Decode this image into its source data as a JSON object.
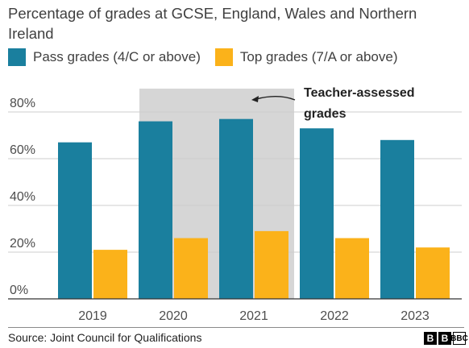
{
  "colors": {
    "pass": "#1a7f9e",
    "top": "#fbb21a",
    "shade": "#d6d6d6",
    "grid": "#cccccc",
    "axis_text": "#4d4d4d"
  },
  "chart_data": {
    "type": "bar",
    "title": "Percentage of grades at GCSE, England, Wales and Northern Ireland",
    "categories": [
      "2019",
      "2020",
      "2021",
      "2022",
      "2023"
    ],
    "series": [
      {
        "name": "Pass grades (4/C or above)",
        "values": [
          67,
          76,
          77,
          73,
          68
        ]
      },
      {
        "name": "Top grades (7/A or above)",
        "values": [
          21,
          26,
          29,
          26,
          22
        ]
      }
    ],
    "yticks": [
      "0%",
      "20%",
      "40%",
      "60%",
      "80%"
    ],
    "ylim": [
      0,
      90
    ],
    "legend_position": "top",
    "grid": true,
    "annotation": {
      "text": "Teacher-assessed grades",
      "line1": "Teacher-assessed",
      "line2": "grades",
      "highlighted_categories": [
        "2020",
        "2021"
      ]
    }
  },
  "footer": {
    "source": "Source: Joint Council for Qualifications",
    "logo": "BBC"
  }
}
